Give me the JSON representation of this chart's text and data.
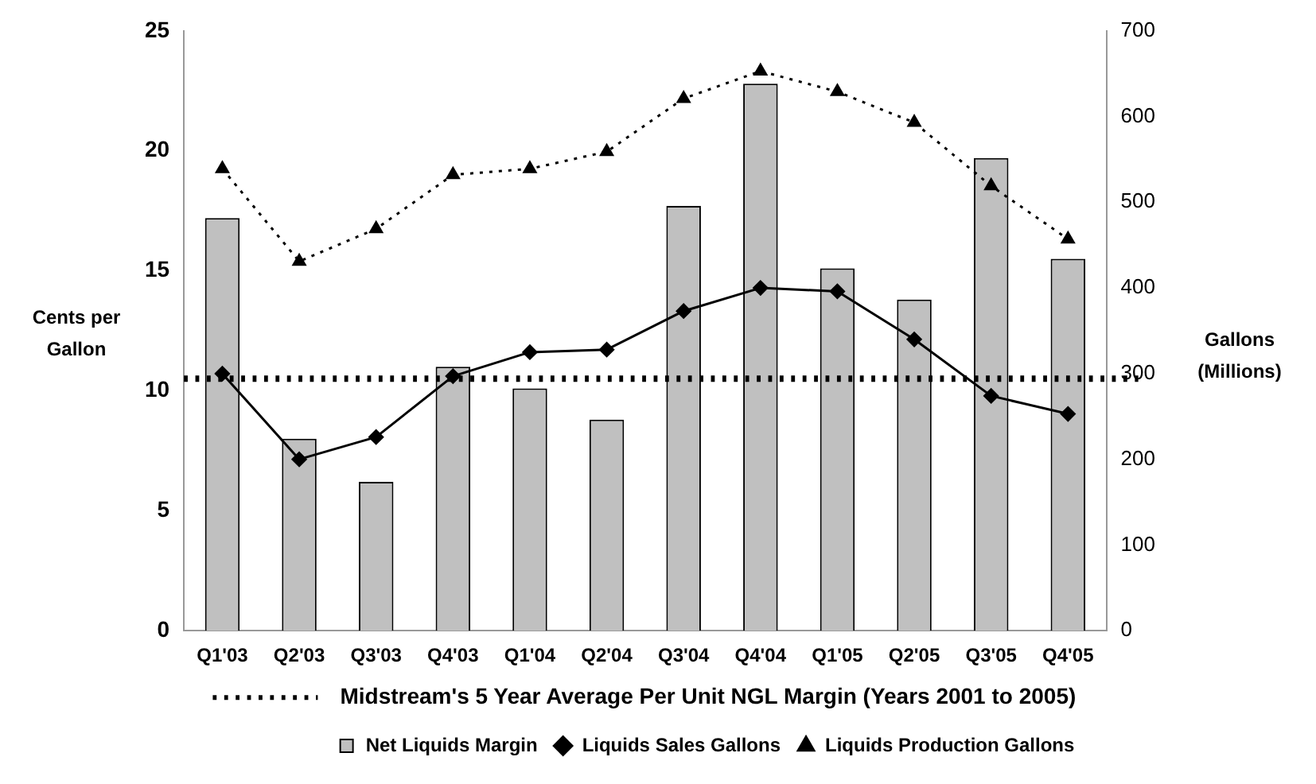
{
  "chart_data": {
    "type": "bar",
    "categories": [
      "Q1'03",
      "Q2'03",
      "Q3'03",
      "Q4'03",
      "Q1'04",
      "Q2'04",
      "Q3'04",
      "Q4'04",
      "Q1'05",
      "Q2'05",
      "Q3'05",
      "Q4'05"
    ],
    "ylabel": "Cents per Gallon",
    "y2label": "Gallons (Millions)",
    "series": [
      {
        "name": "Net Liquids Margin",
        "color": "#c0c0c0",
        "values": [
          17.2,
          8.0,
          6.2,
          11.0,
          10.1,
          8.8,
          17.7,
          22.8,
          15.1,
          13.8,
          19.7,
          15.5
        ]
      },
      {
        "name": "Liquids Sales Gallons",
        "type": "line",
        "axis": "y2",
        "color": "#000000",
        "marker": "diamond",
        "line_style": "solid",
        "values": [
          300,
          200,
          226,
          297,
          325,
          328,
          373,
          400,
          396,
          340,
          274,
          253
        ]
      },
      {
        "name": "Liquids Production Gallons",
        "type": "line",
        "axis": "y2",
        "color": "#000000",
        "marker": "triangle",
        "line_style": "dotted",
        "values": [
          539,
          431,
          469,
          532,
          539,
          559,
          621,
          653,
          629,
          593,
          519,
          457
        ]
      }
    ],
    "ylim": [
      0,
      25
    ],
    "yticks": [
      0,
      5,
      10,
      15,
      20,
      25
    ],
    "y2lim": [
      0,
      700
    ],
    "y2ticks": [
      0,
      100,
      200,
      300,
      400,
      500,
      600,
      700
    ],
    "ref_lines": [
      {
        "axis": "y",
        "value": 10.5,
        "label": "Midstream's 5 Year Average Per Unit NGL Margin (Years 2001 to 2005)",
        "color": "#000000",
        "line_style": "dotted"
      }
    ],
    "grid": false,
    "legend": "bottom"
  }
}
